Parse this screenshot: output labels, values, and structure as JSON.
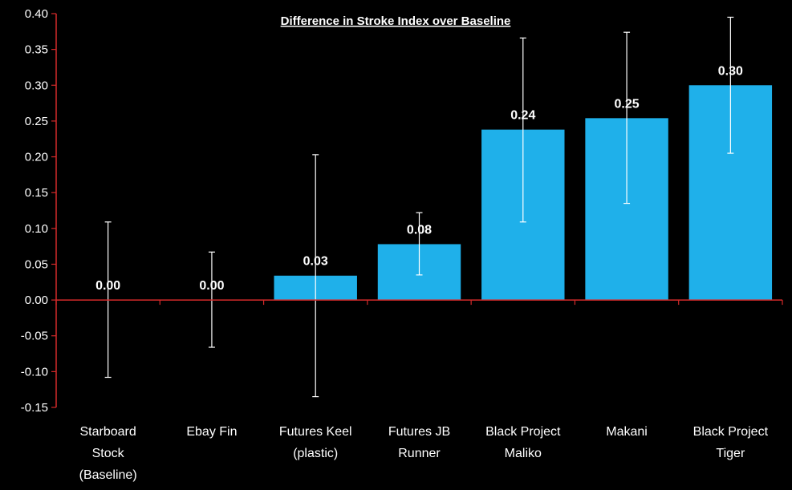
{
  "chart_data": {
    "type": "bar",
    "title": "Difference in Stroke Index over Baseline",
    "xlabel": "",
    "ylabel": "",
    "ylim": [
      -0.15,
      0.4
    ],
    "ytick_step": 0.05,
    "grid": false,
    "legend": "none",
    "categories": [
      [
        "Starboard",
        "Stock",
        "(Baseline)"
      ],
      [
        "Ebay Fin"
      ],
      [
        "Futures Keel",
        "(plastic)"
      ],
      [
        "Futures JB",
        "Runner"
      ],
      [
        "Black Project",
        "Maliko"
      ],
      [
        "Makani"
      ],
      [
        "Black Project",
        "Tiger"
      ]
    ],
    "values": [
      0.0,
      0.0,
      0.034,
      0.078,
      0.238,
      0.254,
      0.3
    ],
    "data_labels": [
      "0.00",
      "0.00",
      "0.03",
      "0.08",
      "0.24",
      "0.25",
      "0.30"
    ],
    "error_bars": [
      {
        "low": -0.108,
        "high": 0.109
      },
      {
        "low": -0.066,
        "high": 0.067
      },
      {
        "low": -0.135,
        "high": 0.203
      },
      {
        "low": 0.035,
        "high": 0.122
      },
      {
        "low": 0.109,
        "high": 0.366
      },
      {
        "low": 0.135,
        "high": 0.374
      },
      {
        "low": 0.205,
        "high": 0.395
      }
    ],
    "colors": {
      "background": "#000000",
      "bar": "#1fb0ea",
      "axis": "#d42a2a",
      "text": "#ffffff",
      "error_bar": "#ffffff"
    }
  }
}
